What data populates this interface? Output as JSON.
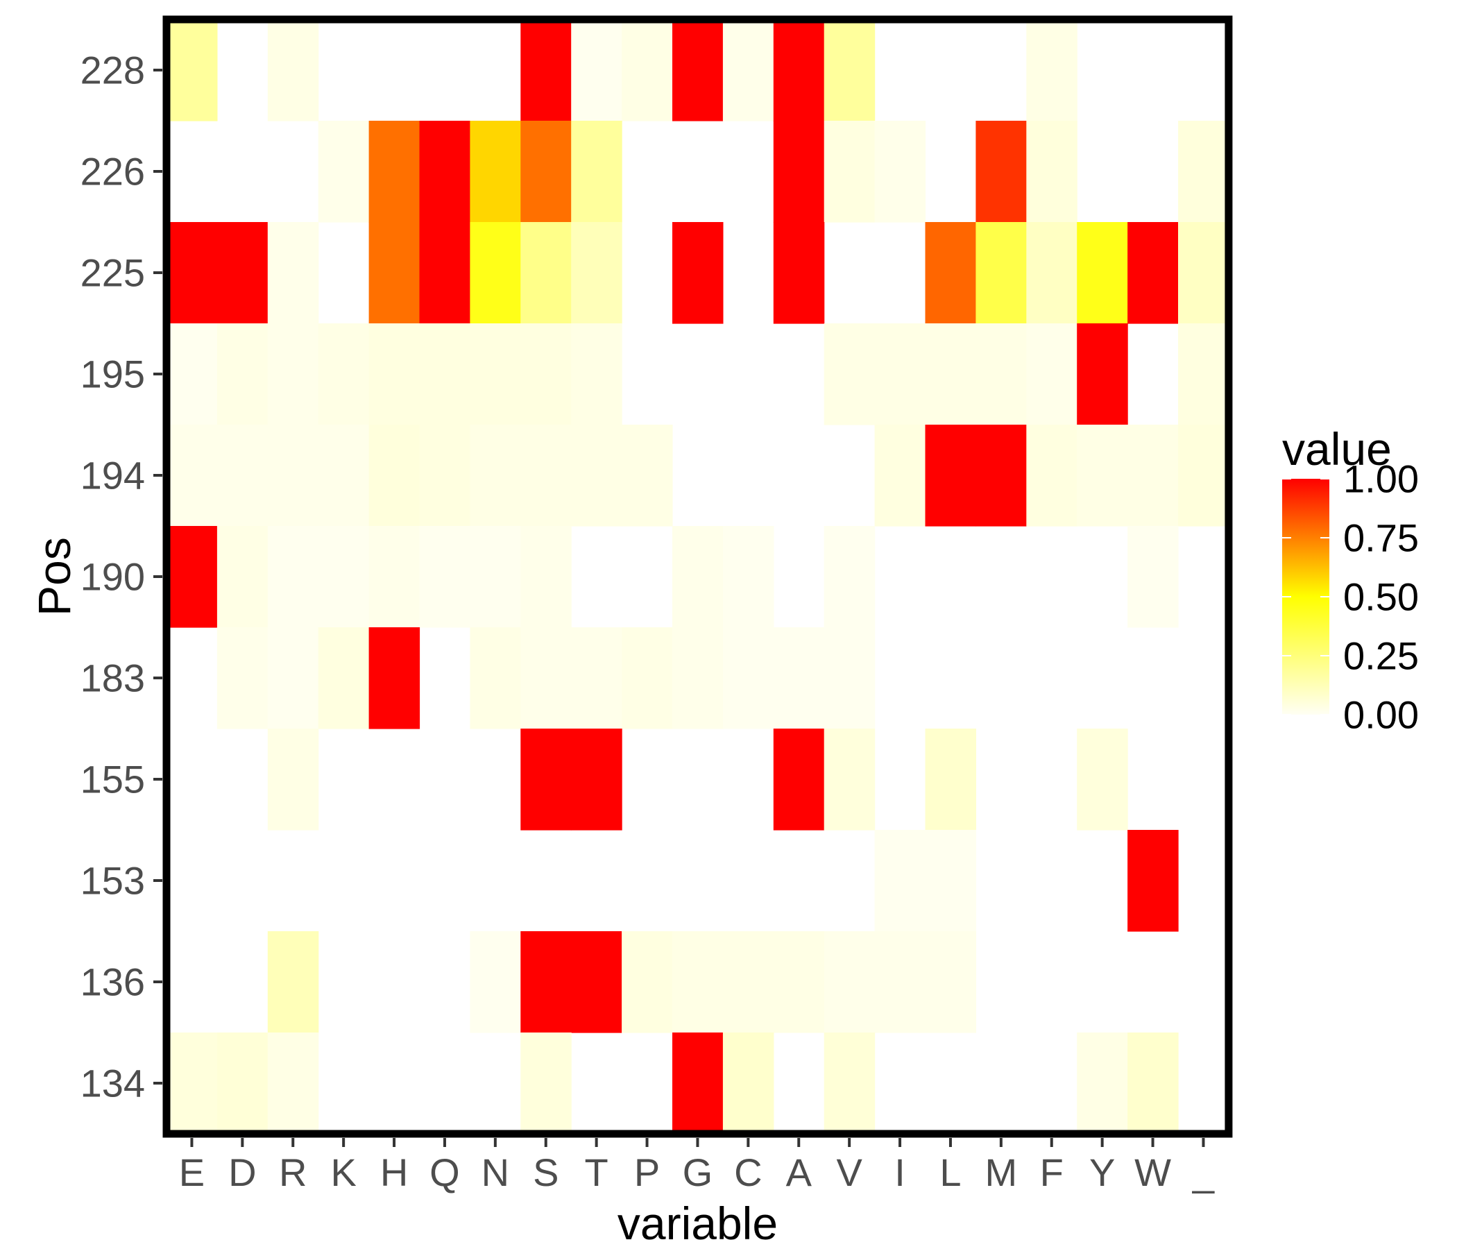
{
  "chart_data": {
    "type": "heatmap",
    "title": "",
    "xlabel": "variable",
    "ylabel": "Pos",
    "x_categories": [
      "E",
      "D",
      "R",
      "K",
      "H",
      "Q",
      "N",
      "S",
      "T",
      "P",
      "G",
      "C",
      "A",
      "V",
      "I",
      "L",
      "M",
      "F",
      "Y",
      "W",
      "_"
    ],
    "y_categories": [
      "228",
      "226",
      "225",
      "195",
      "194",
      "190",
      "183",
      "155",
      "153",
      "136",
      "134"
    ],
    "values": [
      [
        0.18,
        0.0,
        0.03,
        0.0,
        0.0,
        0.0,
        0.0,
        1.0,
        0.01,
        0.03,
        1.0,
        0.02,
        1.0,
        0.18,
        0.0,
        0.0,
        0.0,
        0.03,
        0.0,
        0.0,
        0.0
      ],
      [
        0.0,
        0.0,
        0.0,
        0.02,
        0.78,
        1.0,
        0.58,
        0.78,
        0.18,
        0.0,
        0.0,
        0.0,
        1.0,
        0.04,
        0.02,
        0.0,
        0.9,
        0.05,
        0.0,
        0.0,
        0.05
      ],
      [
        1.0,
        1.0,
        0.02,
        0.0,
        0.78,
        1.0,
        0.45,
        0.22,
        0.12,
        0.0,
        1.0,
        0.0,
        1.0,
        0.0,
        0.0,
        0.8,
        0.35,
        0.1,
        0.45,
        1.0,
        0.1
      ],
      [
        0.01,
        0.03,
        0.02,
        0.03,
        0.04,
        0.04,
        0.04,
        0.04,
        0.03,
        0.0,
        0.0,
        0.0,
        0.0,
        0.03,
        0.03,
        0.03,
        0.03,
        0.02,
        1.0,
        0.0,
        0.04
      ],
      [
        0.02,
        0.02,
        0.02,
        0.02,
        0.05,
        0.04,
        0.03,
        0.03,
        0.03,
        0.03,
        0.0,
        0.0,
        0.0,
        0.0,
        0.04,
        1.0,
        1.0,
        0.04,
        0.03,
        0.03,
        0.05
      ],
      [
        1.0,
        0.03,
        0.01,
        0.01,
        0.02,
        0.01,
        0.01,
        0.02,
        0.0,
        0.0,
        0.02,
        0.01,
        0.0,
        0.01,
        0.0,
        0.0,
        0.0,
        0.0,
        0.0,
        0.01,
        0.0
      ],
      [
        0.0,
        0.02,
        0.01,
        0.04,
        1.0,
        0.0,
        0.03,
        0.02,
        0.02,
        0.03,
        0.02,
        0.01,
        0.01,
        0.01,
        0.0,
        0.0,
        0.0,
        0.0,
        0.0,
        0.0,
        0.0
      ],
      [
        0.0,
        0.0,
        0.03,
        0.0,
        0.0,
        0.0,
        0.0,
        1.0,
        1.0,
        0.0,
        0.0,
        0.0,
        1.0,
        0.05,
        0.0,
        0.08,
        0.0,
        0.0,
        0.05,
        0.0,
        0.0
      ],
      [
        0.0,
        0.0,
        0.0,
        0.0,
        0.0,
        0.0,
        0.0,
        0.0,
        0.0,
        0.0,
        0.0,
        0.0,
        0.0,
        0.0,
        0.01,
        0.01,
        0.0,
        0.0,
        0.0,
        1.0,
        0.0
      ],
      [
        0.0,
        0.0,
        0.12,
        0.0,
        0.0,
        0.0,
        0.01,
        1.0,
        1.0,
        0.04,
        0.03,
        0.03,
        0.03,
        0.02,
        0.02,
        0.02,
        0.0,
        0.0,
        0.0,
        0.0,
        0.0
      ],
      [
        0.05,
        0.06,
        0.03,
        0.0,
        0.0,
        0.0,
        0.0,
        0.05,
        0.0,
        0.0,
        1.0,
        0.08,
        0.0,
        0.06,
        0.0,
        0.0,
        0.0,
        0.0,
        0.03,
        0.08,
        0.0
      ]
    ],
    "color_scale": {
      "colors": [
        "#fffff4",
        "#ffff00",
        "#ff0000"
      ],
      "stops": [
        0,
        0.5,
        1
      ],
      "limits": [
        0,
        1
      ]
    },
    "legend": {
      "title": "value",
      "breaks": [
        "1.00",
        "0.75",
        "0.50",
        "0.25",
        "0.00"
      ],
      "placement": "right"
    },
    "panel_border_color": "#000000",
    "grid": false
  }
}
